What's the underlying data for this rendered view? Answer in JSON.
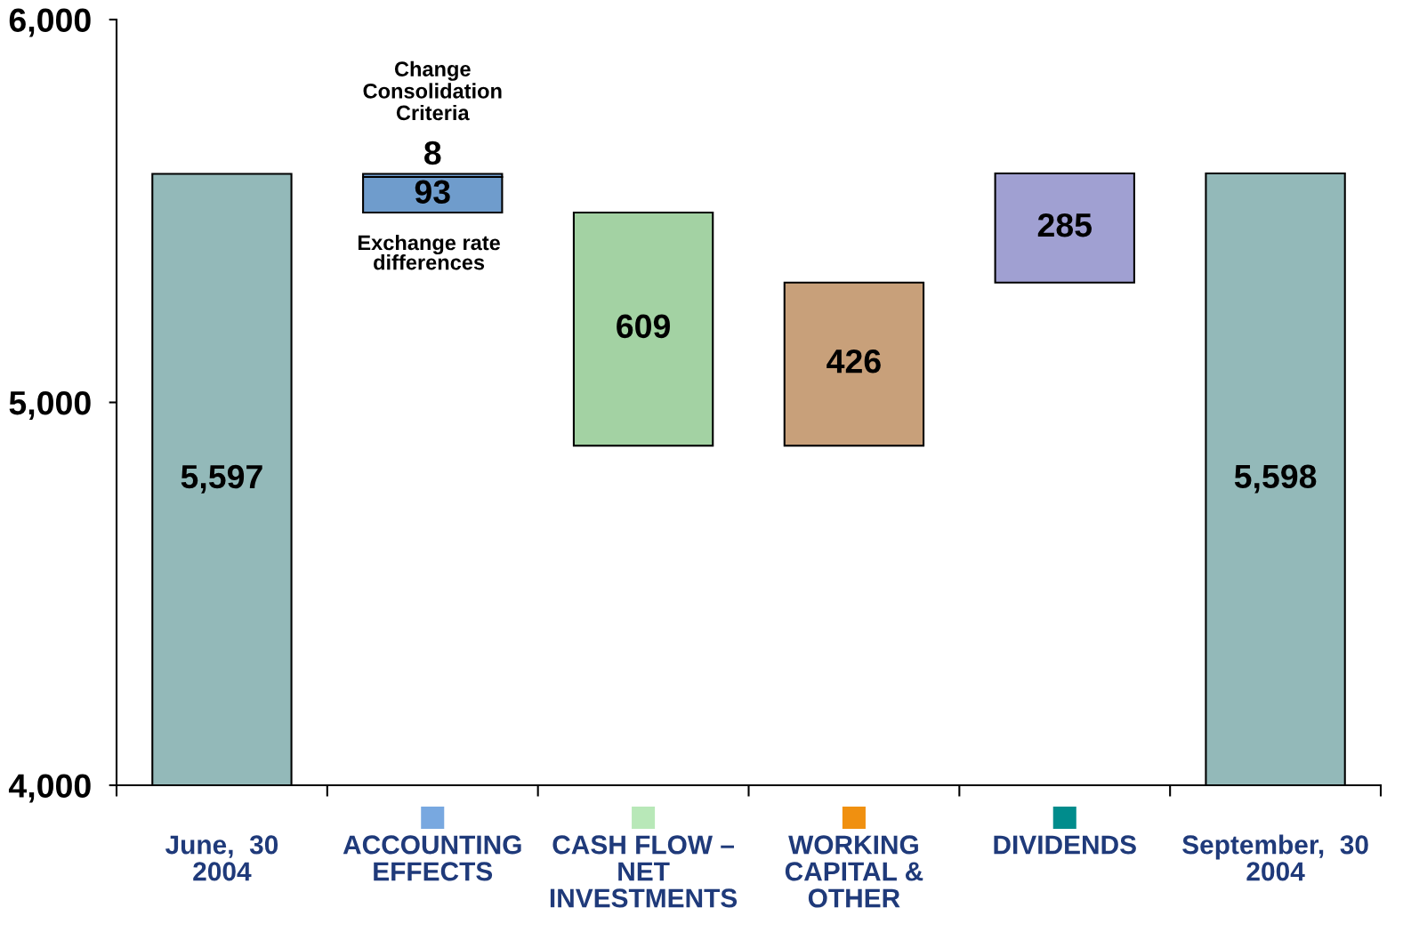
{
  "chart_data": {
    "type": "bar",
    "categories": [
      "June,  30\n2004",
      "ACCOUNTING\nEFFECTS",
      "CASH FLOW –\nNET\nINVESTMENTS",
      "WORKING\nCAPITAL &\nOTHER",
      "DIVIDENDS",
      "September,  30\n2004"
    ],
    "series": [
      {
        "colors": [
          "#93b9b9",
          "#6f9ccc",
          "#a3d2a3",
          "#c8a07a",
          "#a0a0d2",
          "#93b9b9"
        ],
        "base": [
          null,
          5496,
          4887,
          4887,
          5313,
          null
        ],
        "values": [
          5597,
          93,
          609,
          426,
          285,
          5598
        ],
        "value_labels": [
          "5,597",
          "93",
          "609",
          "426",
          "285",
          "5,598"
        ]
      },
      {
        "color": "#6f9ccc",
        "base": [
          null,
          5589,
          null,
          null,
          null,
          null
        ],
        "values": [
          null,
          8,
          null,
          null,
          null,
          null
        ],
        "value_labels": [
          null,
          "8",
          null,
          null,
          null,
          null
        ]
      }
    ],
    "ylim": [
      4000,
      6000
    ],
    "yticks": [
      {
        "value": 4000,
        "label": "4,000"
      },
      {
        "value": 5000,
        "label": "5,000"
      },
      {
        "value": 6000,
        "label": "6,000"
      }
    ],
    "annotations": [
      {
        "text": "Change\nConsolidation\nCriteria",
        "x": "ACCOUNTING\nEFFECTS",
        "y": 5597
      },
      {
        "text": "Exchange rate\ndifferences",
        "x": "ACCOUNTING\nEFFECTS",
        "y": 5589
      }
    ]
  }
}
